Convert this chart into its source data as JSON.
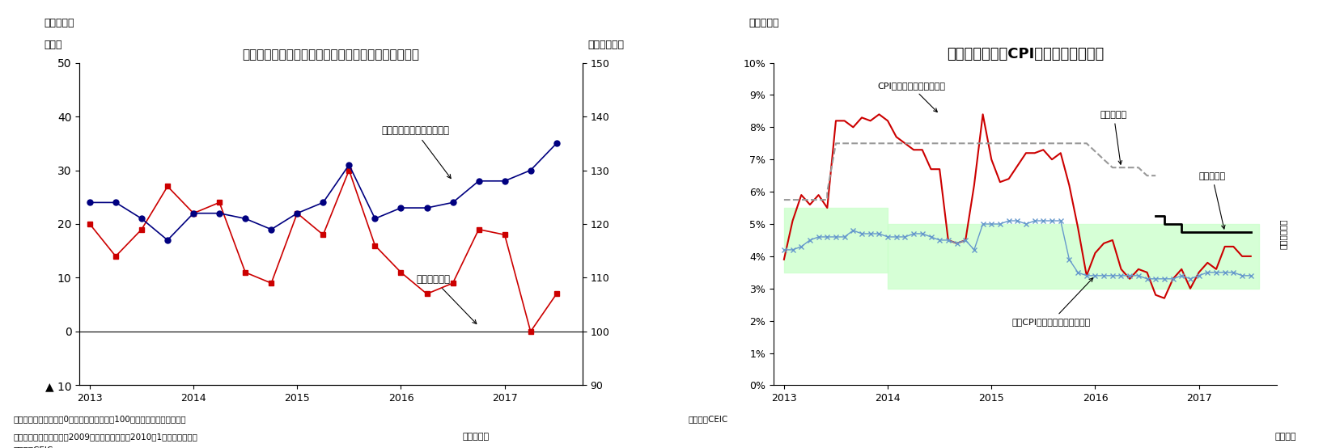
{
  "chart1": {
    "title": "インドネシア　企業景況感と消費者信頼感（先行き）",
    "label_left": "（％）",
    "label_right": "（ポイント）",
    "ylim_left": [
      -10,
      50
    ],
    "ylim_right": [
      90,
      150
    ],
    "yticks_left": [
      -10,
      0,
      10,
      20,
      30,
      40,
      50
    ],
    "yticks_right": [
      90,
      100,
      110,
      120,
      130,
      140,
      150
    ],
    "footnote": "（図表３）",
    "note1": "（注）事業活動指数は0超、消費者信頼感は100を超えると楽観を表す。",
    "note2": "　　消費者信頼感指数は2009年までは旧系列、2010年1月から新系列。",
    "note3": "（資料）CEIC",
    "note4": "（四半期）",
    "business_label": "事業活動指数",
    "consumer_label": "消費者信頼感指数（右軸）",
    "business_x": [
      2013.0,
      2013.25,
      2013.5,
      2013.75,
      2014.0,
      2014.25,
      2014.5,
      2014.75,
      2015.0,
      2015.25,
      2015.5,
      2015.75,
      2016.0,
      2016.25,
      2016.5,
      2016.75,
      2017.0,
      2017.25,
      2017.5
    ],
    "business_y": [
      20,
      14,
      19,
      27,
      22,
      24,
      11,
      9,
      22,
      18,
      30,
      16,
      11,
      7,
      9,
      19,
      18,
      0,
      7
    ],
    "consumer_y_right": [
      124,
      124,
      121,
      117,
      122,
      122,
      121,
      119,
      122,
      124,
      131,
      121,
      123,
      123,
      124,
      128,
      128,
      130,
      135
    ],
    "business_color": "#cc0000",
    "consumer_color": "#000080",
    "xlim": [
      2012.9,
      2017.75
    ],
    "xticks": [
      2013,
      2014,
      2015,
      2016,
      2017
    ],
    "background_color": "#ffffff"
  },
  "chart2": {
    "title": "インドネシアのCPI上昇率と政策金利",
    "footnote": "（図表４）",
    "note1": "（資料）CEIC",
    "note2": "（月次）",
    "ylim": [
      0,
      10
    ],
    "yticks": [
      0,
      1,
      2,
      3,
      4,
      5,
      6,
      7,
      8,
      9,
      10
    ],
    "ytick_labels": [
      "0%",
      "1%",
      "2%",
      "3%",
      "4%",
      "5%",
      "6%",
      "7%",
      "8%",
      "9%",
      "10%"
    ],
    "xlim": [
      2012.9,
      2017.75
    ],
    "xticks": [
      2013,
      2014,
      2015,
      2016,
      2017
    ],
    "cpi_label": "CPI上昇率（前年同月比）",
    "core_cpi_label": "コアCPI上昇率（前年同月比）",
    "old_rate_label": "旧政策金利",
    "new_rate_label": "新政策金利",
    "inflation_label": "インフレ目標",
    "cpi_color": "#cc0000",
    "core_cpi_color": "#6699cc",
    "old_rate_color": "#999999",
    "new_rate_color": "#000000",
    "inflation_band_color": "#ccffcc",
    "inflation_band_alpha": 0.8,
    "cpi_x": [
      2013.0,
      2013.083,
      2013.167,
      2013.25,
      2013.333,
      2013.417,
      2013.5,
      2013.583,
      2013.667,
      2013.75,
      2013.833,
      2013.917,
      2014.0,
      2014.083,
      2014.167,
      2014.25,
      2014.333,
      2014.417,
      2014.5,
      2014.583,
      2014.667,
      2014.75,
      2014.833,
      2014.917,
      2015.0,
      2015.083,
      2015.167,
      2015.25,
      2015.333,
      2015.417,
      2015.5,
      2015.583,
      2015.667,
      2015.75,
      2015.833,
      2015.917,
      2016.0,
      2016.083,
      2016.167,
      2016.25,
      2016.333,
      2016.417,
      2016.5,
      2016.583,
      2016.667,
      2016.75,
      2016.833,
      2016.917,
      2017.0,
      2017.083,
      2017.167,
      2017.25,
      2017.333,
      2017.417,
      2017.5
    ],
    "cpi_y": [
      3.9,
      5.1,
      5.9,
      5.6,
      5.9,
      5.5,
      8.2,
      8.2,
      8.0,
      8.3,
      8.2,
      8.4,
      8.2,
      7.7,
      7.5,
      7.3,
      7.3,
      6.7,
      6.7,
      4.5,
      4.4,
      4.5,
      6.2,
      8.4,
      7.0,
      6.3,
      6.4,
      6.8,
      7.2,
      7.2,
      7.3,
      7.0,
      7.2,
      6.2,
      4.9,
      3.4,
      4.1,
      4.4,
      4.5,
      3.6,
      3.3,
      3.6,
      3.5,
      2.8,
      2.7,
      3.3,
      3.6,
      3.0,
      3.5,
      3.8,
      3.6,
      4.3,
      4.3,
      4.0,
      4.0
    ],
    "core_cpi_x": [
      2013.0,
      2013.083,
      2013.167,
      2013.25,
      2013.333,
      2013.417,
      2013.5,
      2013.583,
      2013.667,
      2013.75,
      2013.833,
      2013.917,
      2014.0,
      2014.083,
      2014.167,
      2014.25,
      2014.333,
      2014.417,
      2014.5,
      2014.583,
      2014.667,
      2014.75,
      2014.833,
      2014.917,
      2015.0,
      2015.083,
      2015.167,
      2015.25,
      2015.333,
      2015.417,
      2015.5,
      2015.583,
      2015.667,
      2015.75,
      2015.833,
      2015.917,
      2016.0,
      2016.083,
      2016.167,
      2016.25,
      2016.333,
      2016.417,
      2016.5,
      2016.583,
      2016.667,
      2016.75,
      2016.833,
      2016.917,
      2017.0,
      2017.083,
      2017.167,
      2017.25,
      2017.333,
      2017.417,
      2017.5
    ],
    "core_cpi_y": [
      4.2,
      4.2,
      4.3,
      4.5,
      4.6,
      4.6,
      4.6,
      4.6,
      4.8,
      4.7,
      4.7,
      4.7,
      4.6,
      4.6,
      4.6,
      4.7,
      4.7,
      4.6,
      4.5,
      4.5,
      4.4,
      4.5,
      4.2,
      5.0,
      5.0,
      5.0,
      5.1,
      5.1,
      5.0,
      5.1,
      5.1,
      5.1,
      5.1,
      3.9,
      3.5,
      3.4,
      3.4,
      3.4,
      3.4,
      3.4,
      3.4,
      3.4,
      3.3,
      3.3,
      3.3,
      3.3,
      3.4,
      3.3,
      3.4,
      3.5,
      3.5,
      3.5,
      3.5,
      3.4,
      3.4
    ],
    "old_rate_x": [
      2013.0,
      2013.083,
      2013.167,
      2013.333,
      2013.417,
      2013.417,
      2013.5,
      2013.833,
      2013.917,
      2014.0,
      2014.083,
      2014.917,
      2015.0,
      2015.083,
      2015.167,
      2015.25,
      2015.333,
      2015.417,
      2015.5,
      2015.583,
      2015.667,
      2015.75,
      2015.833,
      2015.917,
      2016.0,
      2016.083,
      2016.167,
      2016.25,
      2016.333,
      2016.417,
      2016.5,
      2016.583
    ],
    "old_rate_y": [
      5.75,
      5.75,
      5.75,
      5.75,
      5.75,
      6.0,
      7.5,
      7.5,
      7.5,
      7.5,
      7.5,
      7.5,
      7.5,
      7.5,
      7.5,
      7.5,
      7.5,
      7.5,
      7.5,
      7.5,
      7.5,
      7.5,
      7.5,
      7.5,
      7.25,
      7.0,
      6.75,
      6.75,
      6.75,
      6.75,
      6.5,
      6.5
    ],
    "new_rate_x": [
      2016.583,
      2016.667,
      2016.75,
      2016.833,
      2016.917,
      2017.0,
      2017.083,
      2017.167,
      2017.25,
      2017.333,
      2017.417,
      2017.5
    ],
    "new_rate_y": [
      5.25,
      5.0,
      5.0,
      4.75,
      4.75,
      4.75,
      4.75,
      4.75,
      4.75,
      4.75,
      4.75,
      4.75
    ],
    "inflation_band_x1_start": 2013.0,
    "inflation_band_x1_end": 2014.0,
    "inflation_band_y1_low": 3.5,
    "inflation_band_y1_high": 5.5,
    "inflation_band_x2_start": 2014.0,
    "inflation_band_x2_end": 2017.583,
    "inflation_band_y2_low": 3.0,
    "inflation_band_y2_high": 5.0
  }
}
